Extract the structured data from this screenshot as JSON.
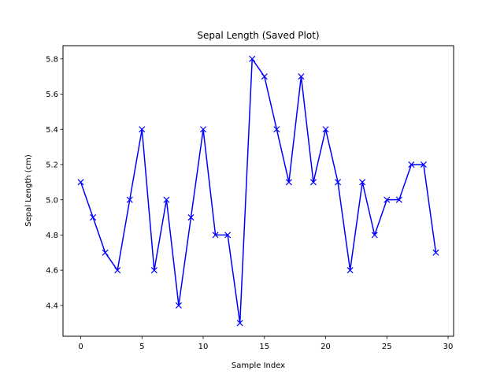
{
  "chart_data": {
    "type": "line",
    "title": "Sepal Length (Saved Plot)",
    "xlabel": "Sample Index",
    "ylabel": "Sepal Length (cm)",
    "xlim": [
      -1.45,
      30.45
    ],
    "ylim": [
      4.225,
      5.875
    ],
    "xticks": [
      0,
      5,
      10,
      15,
      20,
      25,
      30
    ],
    "yticks": [
      4.4,
      4.6,
      4.8,
      5.0,
      5.2,
      5.4,
      5.6,
      5.8
    ],
    "xtick_labels": [
      "0",
      "5",
      "10",
      "15",
      "20",
      "25",
      "30"
    ],
    "ytick_labels": [
      "4.4",
      "4.6",
      "4.8",
      "5.0",
      "5.2",
      "5.4",
      "5.6",
      "5.8"
    ],
    "grid": false,
    "marker": "x",
    "color": "#0000ff",
    "series": [
      {
        "x": [
          0,
          1,
          2,
          3,
          4,
          5,
          6,
          7,
          8,
          9,
          10,
          11,
          12,
          13,
          14,
          15,
          16,
          17,
          18,
          19,
          20,
          21,
          22,
          23,
          24,
          25,
          26,
          27,
          28,
          29
        ],
        "values": [
          5.1,
          4.9,
          4.7,
          4.6,
          5.0,
          5.4,
          4.6,
          5.0,
          4.4,
          4.9,
          5.4,
          4.8,
          4.8,
          4.3,
          5.8,
          5.7,
          5.4,
          5.1,
          5.7,
          5.1,
          5.4,
          5.1,
          4.6,
          5.1,
          4.8,
          5.0,
          5.0,
          5.2,
          5.2,
          4.7
        ]
      }
    ]
  }
}
